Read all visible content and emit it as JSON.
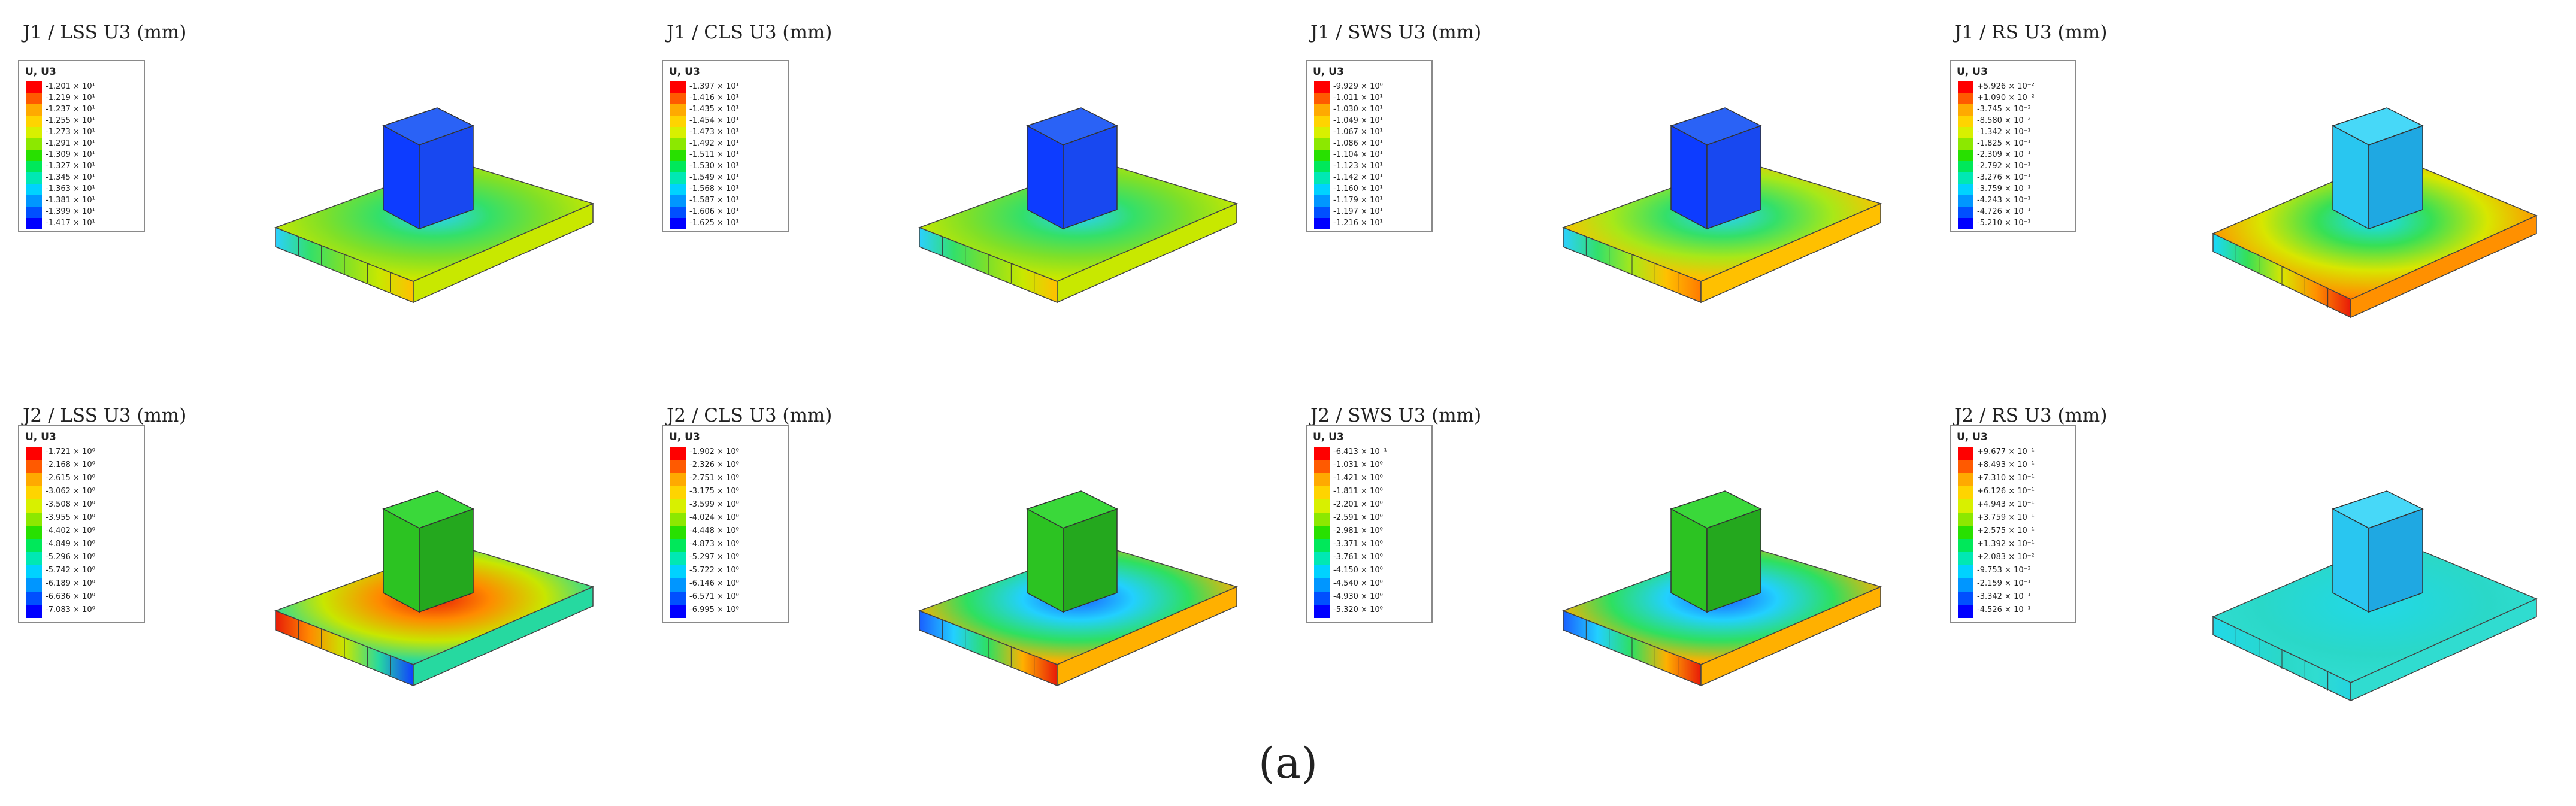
{
  "panels": [
    {
      "row": 0,
      "col": 0,
      "title": "J1 / LSS    U3 (mm)",
      "legend_header": "U, U3",
      "legend_values": [
        "-1.201 × 10¹",
        "-1.219 × 10¹",
        "-1.237 × 10¹",
        "-1.255 × 10¹",
        "-1.273 × 10¹",
        "-1.291 × 10¹",
        "-1.309 × 10¹",
        "-1.327 × 10¹",
        "-1.345 × 10¹",
        "-1.363 × 10¹",
        "-1.381 × 10¹",
        "-1.399 × 10¹",
        "-1.417 × 10¹"
      ],
      "model": {
        "slab_gradient": "green-center",
        "block": "blue",
        "tilt": "left"
      }
    },
    {
      "row": 0,
      "col": 1,
      "title": "J1 / CLS    U3 (mm)",
      "legend_header": "U, U3",
      "legend_values": [
        "-1.397 × 10¹",
        "-1.416 × 10¹",
        "-1.435 × 10¹",
        "-1.454 × 10¹",
        "-1.473 × 10¹",
        "-1.492 × 10¹",
        "-1.511 × 10¹",
        "-1.530 × 10¹",
        "-1.549 × 10¹",
        "-1.568 × 10¹",
        "-1.587 × 10¹",
        "-1.606 × 10¹",
        "-1.625 × 10¹"
      ],
      "model": {
        "slab_gradient": "green-center",
        "block": "blue",
        "tilt": "left"
      }
    },
    {
      "row": 0,
      "col": 2,
      "title": "J1 / SWS    U3 (mm)",
      "legend_header": "U, U3",
      "legend_values": [
        "-9.929 × 10⁰",
        "-1.011 × 10¹",
        "-1.030 × 10¹",
        "-1.049 × 10¹",
        "-1.067 × 10¹",
        "-1.086 × 10¹",
        "-1.104 × 10¹",
        "-1.123 × 10¹",
        "-1.142 × 10¹",
        "-1.160 × 10¹",
        "-1.179 × 10¹",
        "-1.197 × 10¹",
        "-1.216 × 10¹"
      ],
      "model": {
        "slab_gradient": "green-orange",
        "block": "blue",
        "tilt": "left"
      }
    },
    {
      "row": 0,
      "col": 3,
      "title": "J1 / RS    U3 (mm)",
      "legend_header": "U, U3",
      "legend_values": [
        "+5.926 × 10⁻²",
        "+1.090 × 10⁻²",
        "-3.745 × 10⁻²",
        "-8.580 × 10⁻²",
        "-1.342 × 10⁻¹",
        "-1.825 × 10⁻¹",
        "-2.309 × 10⁻¹",
        "-2.792 × 10⁻¹",
        "-3.276 × 10⁻¹",
        "-3.759 × 10⁻¹",
        "-4.243 × 10⁻¹",
        "-4.726 × 10⁻¹",
        "-5.210 × 10⁻¹"
      ],
      "model": {
        "slab_gradient": "red-rings",
        "block": "cyan",
        "tilt": "right"
      }
    },
    {
      "row": 1,
      "col": 0,
      "title": "J2 / LSS    U3 (mm)",
      "legend_header": "U, U3",
      "legend_values": [
        "-1.721 × 10⁰",
        "-2.168 × 10⁰",
        "-2.615 × 10⁰",
        "-3.062 × 10⁰",
        "-3.508 × 10⁰",
        "-3.955 × 10⁰",
        "-4.402 × 10⁰",
        "-4.849 × 10⁰",
        "-5.296 × 10⁰",
        "-5.742 × 10⁰",
        "-6.189 × 10⁰",
        "-6.636 × 10⁰",
        "-7.083 × 10⁰"
      ],
      "model": {
        "slab_gradient": "red-blue-diag",
        "block": "green",
        "tilt": "left"
      }
    },
    {
      "row": 1,
      "col": 1,
      "title": "J2 / CLS    U3 (mm)",
      "legend_header": "U, U3",
      "legend_values": [
        "-1.902 × 10⁰",
        "-2.326 × 10⁰",
        "-2.751 × 10⁰",
        "-3.175 × 10⁰",
        "-3.599 × 10⁰",
        "-4.024 × 10⁰",
        "-4.448 × 10⁰",
        "-4.873 × 10⁰",
        "-5.297 × 10⁰",
        "-5.722 × 10⁰",
        "-6.146 × 10⁰",
        "-6.571 × 10⁰",
        "-6.995 × 10⁰"
      ],
      "model": {
        "slab_gradient": "blue-red-front",
        "block": "green",
        "tilt": "front"
      }
    },
    {
      "row": 1,
      "col": 2,
      "title": "J2 / SWS    U3 (mm)",
      "legend_header": "U, U3",
      "legend_values": [
        "-6.413 × 10⁻¹",
        "-1.031 × 10⁰",
        "-1.421 × 10⁰",
        "-1.811 × 10⁰",
        "-2.201 × 10⁰",
        "-2.591 × 10⁰",
        "-2.981 × 10⁰",
        "-3.371 × 10⁰",
        "-3.761 × 10⁰",
        "-4.150 × 10⁰",
        "-4.540 × 10⁰",
        "-4.930 × 10⁰",
        "-5.320 × 10⁰"
      ],
      "model": {
        "slab_gradient": "blue-red-front",
        "block": "green",
        "tilt": "front"
      }
    },
    {
      "row": 1,
      "col": 3,
      "title": "J2 / RS    U3 (mm)",
      "legend_header": "U, U3",
      "legend_values": [
        "+9.677 × 10⁻¹",
        "+8.493 × 10⁻¹",
        "+7.310 × 10⁻¹",
        "+6.126 × 10⁻¹",
        "+4.943 × 10⁻¹",
        "+3.759 × 10⁻¹",
        "+2.575 × 10⁻¹",
        "+1.392 × 10⁻¹",
        "+2.083 × 10⁻²",
        "-9.753 × 10⁻²",
        "-2.159 × 10⁻¹",
        "-3.342 × 10⁻¹",
        "-4.526 × 10⁻¹"
      ],
      "model": {
        "slab_gradient": "cyan",
        "block": "cyan",
        "tilt": "right"
      }
    }
  ],
  "legend_colors": [
    "#ff0000",
    "#ff5a00",
    "#ffaa00",
    "#ffd400",
    "#d8f000",
    "#8ce800",
    "#28e000",
    "#00e85a",
    "#00e8b4",
    "#00d2ff",
    "#0096ff",
    "#0050ff",
    "#0000ff"
  ],
  "caption": "(a)"
}
